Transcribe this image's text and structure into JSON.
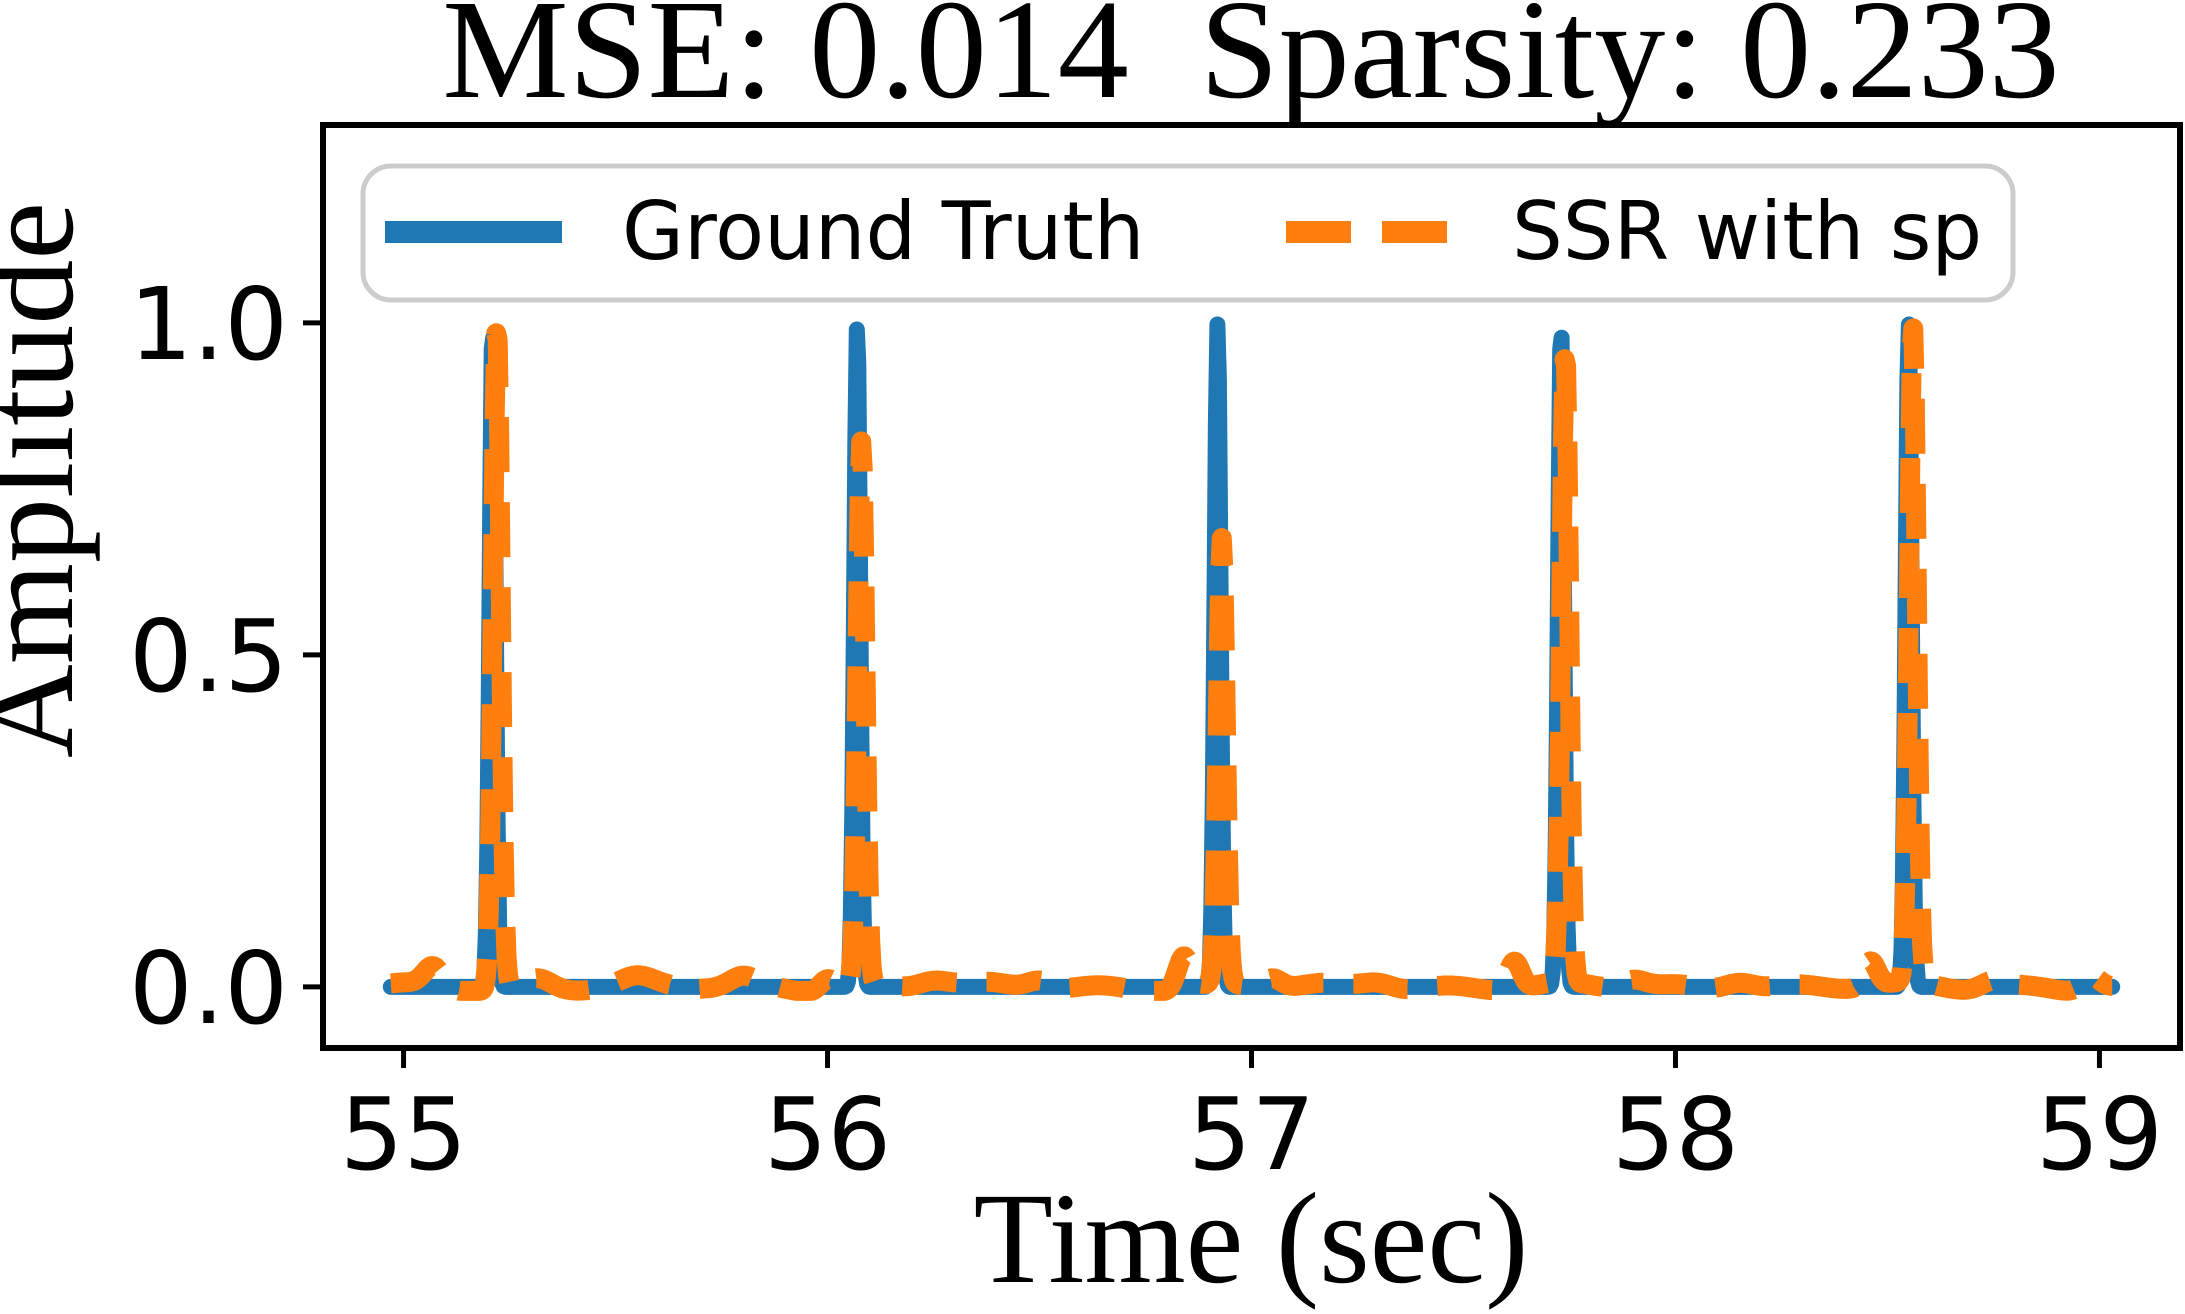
{
  "figure": {
    "background": "#ffffff"
  },
  "chart_data": {
    "type": "line",
    "title": "MSE: 0.014  Sparsity: 0.233",
    "xlabel": "Time (sec)",
    "ylabel": "Amplitude",
    "xlim": [
      54.81,
      59.19
    ],
    "ylim": [
      -0.092,
      1.298
    ],
    "xticks": [
      55,
      56,
      57,
      58,
      59
    ],
    "xtick_labels": [
      "55",
      "56",
      "57",
      "58",
      "59"
    ],
    "yticks": [
      0.0,
      0.5,
      1.0
    ],
    "ytick_labels": [
      "0.0",
      "0.5",
      "1.0"
    ],
    "grid": false,
    "legend_position": "upper center inside",
    "t_range": [
      54.97,
      59.03
    ],
    "series": [
      {
        "name": "Ground Truth",
        "color": "#1f77b4",
        "style": "solid",
        "line_width": 16,
        "peak_times": [
          55.21,
          56.07,
          56.92,
          57.73,
          58.55
        ],
        "peak_values": [
          1.0,
          1.0,
          1.0,
          1.0,
          1.0
        ],
        "peak_width": 0.01,
        "lag": 0.0
      },
      {
        "name": "SSR with sp",
        "color": "#ff7f0e",
        "style": "dashed",
        "line_width": 20,
        "dash": [
          55,
          30
        ],
        "peak_times": [
          55.21,
          56.07,
          56.92,
          57.73,
          58.55
        ],
        "peak_values": [
          1.0,
          0.82,
          0.67,
          0.95,
          0.99
        ],
        "peak_width": 0.013,
        "lag": 0.01,
        "baseline_bumps": [
          [
            55.07,
            0.03,
            0.03
          ],
          [
            55.32,
            0.012,
            0.04
          ],
          [
            55.55,
            0.01,
            0.05
          ],
          [
            55.8,
            0.013,
            0.04
          ],
          [
            56.0,
            0.018,
            0.025
          ],
          [
            56.25,
            0.012,
            0.05
          ],
          [
            56.5,
            0.014,
            0.04
          ],
          [
            56.84,
            0.048,
            0.022
          ],
          [
            57.05,
            0.015,
            0.03
          ],
          [
            57.3,
            0.012,
            0.05
          ],
          [
            57.62,
            0.042,
            0.022
          ],
          [
            57.9,
            0.013,
            0.04
          ],
          [
            58.15,
            0.014,
            0.05
          ],
          [
            58.46,
            0.038,
            0.022
          ],
          [
            58.75,
            0.012,
            0.04
          ],
          [
            58.98,
            0.022,
            0.03
          ]
        ]
      }
    ]
  },
  "colors": {
    "spine": "#000000",
    "tick": "#000000",
    "legend_border": "#cccccc",
    "legend_bg": "#ffffff",
    "text": "#000000"
  },
  "legend": {
    "entries": [
      {
        "label": "Ground Truth"
      },
      {
        "label": "SSR with sp"
      }
    ]
  }
}
